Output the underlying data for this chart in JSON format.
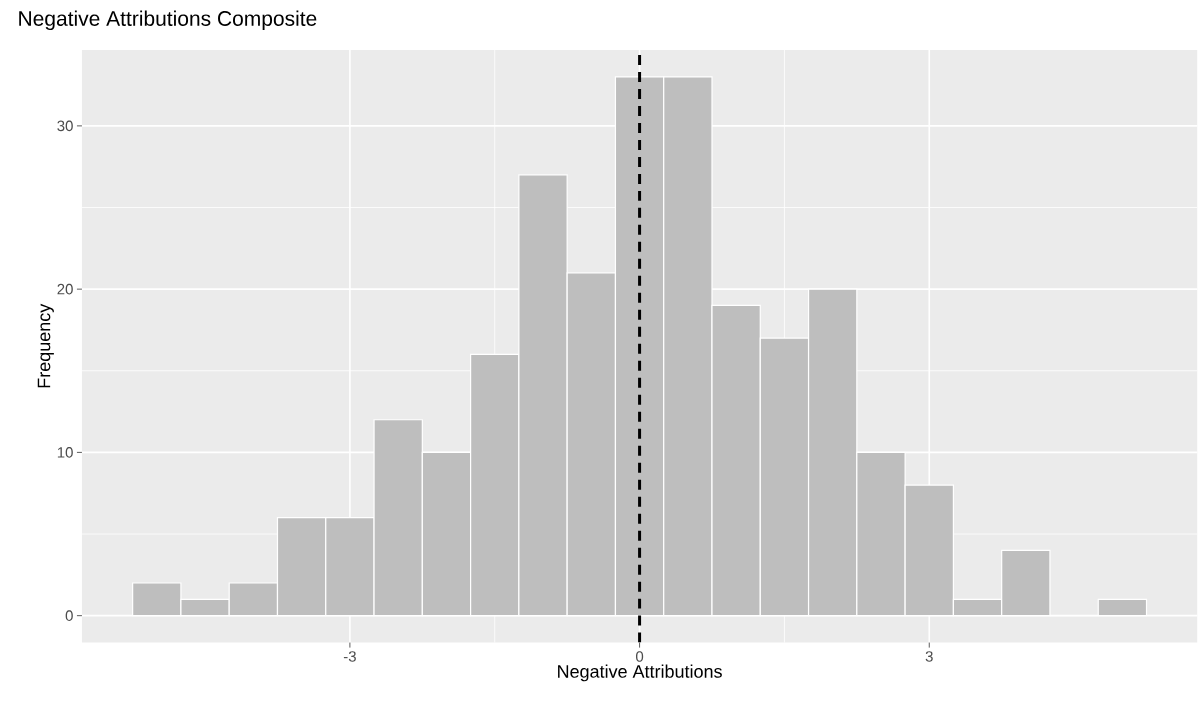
{
  "chart_data": {
    "type": "histogram",
    "title": "Negative Attributions Composite",
    "xlabel": "Negative Attributions",
    "ylabel": "Frequency",
    "bins": [
      -5.25,
      -4.75,
      -4.25,
      -3.75,
      -3.25,
      -2.75,
      -2.25,
      -1.75,
      -1.25,
      -0.75,
      -0.25,
      0.25,
      0.75,
      1.25,
      1.75,
      2.25,
      2.75,
      3.25,
      3.75,
      4.25,
      4.75,
      5.25
    ],
    "values": [
      2,
      1,
      2,
      6,
      6,
      12,
      10,
      16,
      27,
      21,
      33,
      33,
      19,
      17,
      20,
      10,
      8,
      1,
      4,
      0,
      1
    ],
    "color": "#bebebe",
    "xlim": [
      -5.775,
      5.775
    ],
    "ylim": [
      -1.65,
      34.65
    ],
    "xticks": [
      -3,
      0,
      3
    ],
    "yticks": [
      0,
      10,
      20,
      30
    ],
    "grid": true,
    "ref_lines": [
      {
        "axis": "x",
        "value": 0,
        "color": "#000000",
        "line_style": "dashed"
      }
    ]
  }
}
